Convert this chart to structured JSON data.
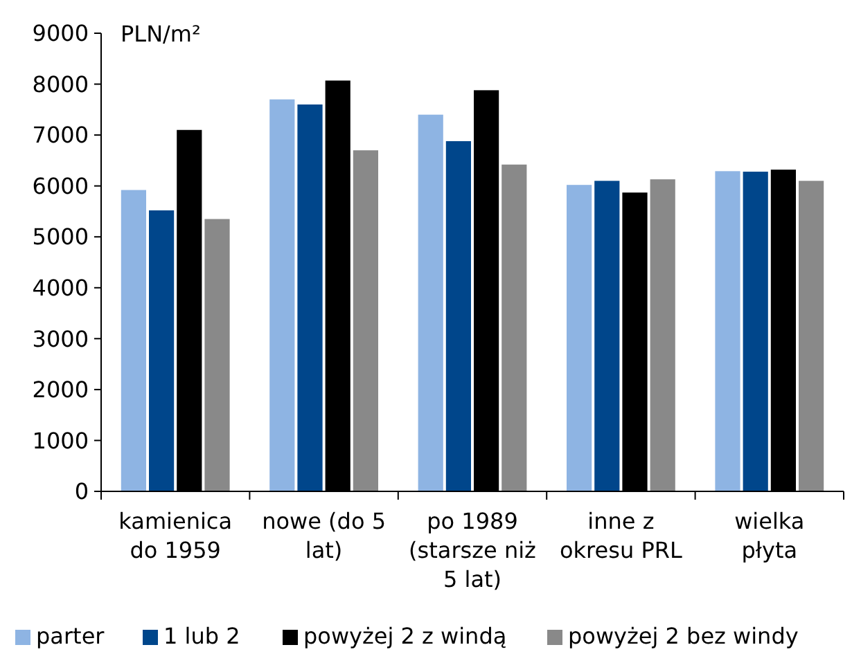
{
  "chart_data": {
    "type": "bar",
    "ylabel": "PLN/m²",
    "categories": [
      "kamienica\ndo 1959",
      "nowe (do 5\nlat)",
      "po 1989\n(starsze niż\n5 lat)",
      "inne z\nokresu PRL",
      "wielka\npłyta"
    ],
    "series": [
      {
        "name": "parter",
        "color": "#8eb4e3",
        "values": [
          5920,
          7700,
          7400,
          6020,
          6290
        ]
      },
      {
        "name": "1 lub 2",
        "color": "#00468b",
        "values": [
          5520,
          7600,
          6880,
          6100,
          6280
        ]
      },
      {
        "name": "powyżej 2 z windą",
        "color": "#000000",
        "values": [
          7100,
          8070,
          7880,
          5870,
          6320
        ]
      },
      {
        "name": "powyżej 2 bez windy",
        "color": "#898989",
        "values": [
          5350,
          6700,
          6420,
          6130,
          6100
        ]
      }
    ],
    "ylim": [
      0,
      9000
    ],
    "yticks": [
      0,
      1000,
      2000,
      3000,
      4000,
      5000,
      6000,
      7000,
      8000,
      9000
    ],
    "grid": false,
    "legend": "bottom"
  }
}
